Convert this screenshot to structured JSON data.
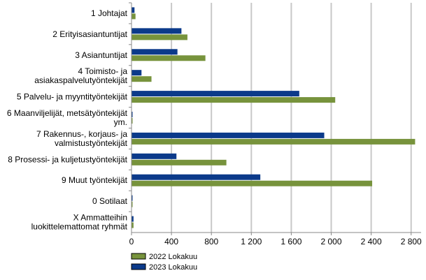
{
  "chart_data": {
    "type": "bar",
    "orientation": "horizontal",
    "categories": [
      [
        "1 Johtajat"
      ],
      [
        "2 Erityisasiantuntijat"
      ],
      [
        "3 Asiantuntijat"
      ],
      [
        "4 Toimisto- ja",
        "asiakaspalvelutyöntekijät"
      ],
      [
        "5 Palvelu- ja myyntityöntekijät"
      ],
      [
        "6 Maanviljelijät, metsätyöntekijät",
        "ym."
      ],
      [
        "7 Rakennus-, korjaus- ja",
        "valmistustyöntekijät"
      ],
      [
        "8 Prosessi- ja kuljetustyöntekijät"
      ],
      [
        "9 Muut työntekijät"
      ],
      [
        "0 Sotilaat"
      ],
      [
        "X Ammatteihin",
        "luokittelemattomat ryhmät"
      ]
    ],
    "series": [
      {
        "name": "2023 Lokakuu",
        "color": "#0b3a8a",
        "values": [
          30,
          500,
          460,
          100,
          1680,
          10,
          1930,
          450,
          1290,
          5,
          20
        ]
      },
      {
        "name": "2022 Lokakuu",
        "color": "#77933c",
        "values": [
          40,
          560,
          740,
          200,
          2040,
          10,
          2840,
          950,
          2410,
          5,
          20
        ]
      }
    ],
    "xlim": [
      0,
      2900
    ],
    "xticks": [
      0,
      400,
      800,
      1200,
      1600,
      2000,
      2400,
      2800
    ],
    "xtick_labels": [
      "0",
      "400",
      "800",
      "1 200",
      "1 600",
      "2 000",
      "2 400",
      "2 800"
    ],
    "grid": true,
    "legend": {
      "position": "bottom-left",
      "entries": [
        "2022 Lokakuu",
        "2023 Lokakuu"
      ]
    }
  }
}
